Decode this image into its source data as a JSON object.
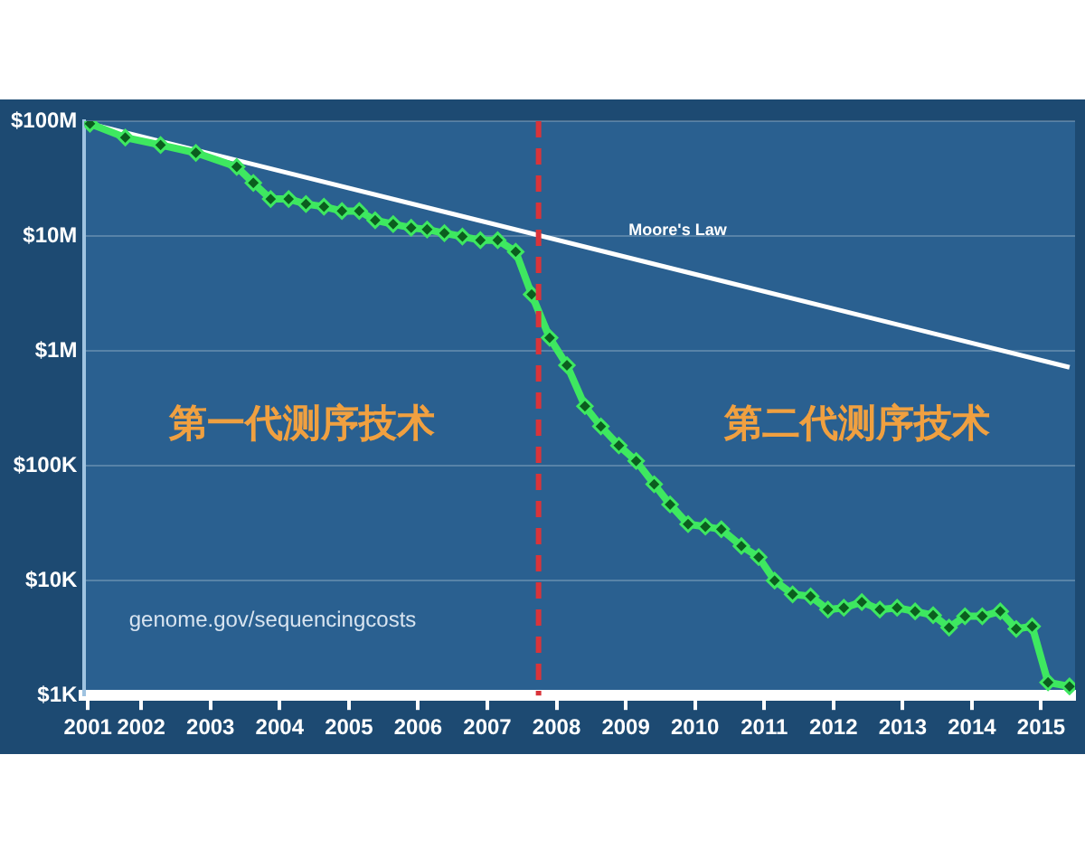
{
  "chart_data": {
    "type": "line",
    "log": "y",
    "grid": "y",
    "legend": false,
    "xlim": [
      2001.18,
      2015.49
    ],
    "xticks": [
      {
        "value": 2001.23,
        "label": "2001"
      },
      {
        "value": 2002,
        "label": "2002"
      },
      {
        "value": 2003,
        "label": "2003"
      },
      {
        "value": 2004,
        "label": "2004"
      },
      {
        "value": 2005,
        "label": "2005"
      },
      {
        "value": 2006,
        "label": "2006"
      },
      {
        "value": 2007,
        "label": "2007"
      },
      {
        "value": 2008,
        "label": "2008"
      },
      {
        "value": 2009,
        "label": "2009"
      },
      {
        "value": 2010,
        "label": "2010"
      },
      {
        "value": 2011,
        "label": "2011"
      },
      {
        "value": 2012,
        "label": "2012"
      },
      {
        "value": 2013,
        "label": "2013"
      },
      {
        "value": 2014,
        "label": "2014"
      },
      {
        "value": 2015,
        "label": "2015"
      }
    ],
    "ylim": [
      1000,
      100000000
    ],
    "yticks": [
      {
        "value": 1000,
        "label": "$1K"
      },
      {
        "value": 10000,
        "label": "$10K"
      },
      {
        "value": 100000,
        "label": "$100K"
      },
      {
        "value": 1000000,
        "label": "$1M"
      },
      {
        "value": 10000000,
        "label": "$10M"
      },
      {
        "value": 100000000,
        "label": "$100M"
      }
    ],
    "series": [
      {
        "color": "#3ee860",
        "marker": "diamond",
        "x": [
          2001.26,
          2001.77,
          2002.28,
          2002.79,
          2003.38,
          2003.62,
          2003.87,
          2004.13,
          2004.38,
          2004.64,
          2004.9,
          2005.15,
          2005.38,
          2005.64,
          2005.9,
          2006.13,
          2006.38,
          2006.64,
          2006.9,
          2007.15,
          2007.41,
          2007.64,
          2007.9,
          2008.15,
          2008.41,
          2008.64,
          2008.9,
          2009.15,
          2009.41,
          2009.64,
          2009.9,
          2010.15,
          2010.38,
          2010.67,
          2010.92,
          2011.15,
          2011.41,
          2011.67,
          2011.92,
          2012.15,
          2012.41,
          2012.67,
          2012.92,
          2013.18,
          2013.44,
          2013.67,
          2013.9,
          2014.15,
          2014.41,
          2014.64,
          2014.87,
          2015.1,
          2015.41
        ],
        "values": [
          95000000,
          72000000,
          62000000,
          53000000,
          40000000,
          29000000,
          21000000,
          21000000,
          19000000,
          18000000,
          16500000,
          16500000,
          13700000,
          12700000,
          11800000,
          11400000,
          10600000,
          9900000,
          9200000,
          9200000,
          7300000,
          3100000,
          1300000,
          750000,
          330000,
          220000,
          150000,
          110000,
          69000,
          46000,
          31000,
          29500,
          28000,
          20000,
          16000,
          10000,
          7600,
          7300,
          5600,
          5800,
          6500,
          5600,
          5800,
          5400,
          5000,
          3900,
          4900,
          4900,
          5400,
          3800,
          4000,
          1300,
          1200
        ]
      },
      {
        "name": "Moore's Law",
        "color": "#ffffff",
        "marker": "none",
        "x": [
          2001.26,
          2015.41
        ],
        "values": [
          95000000,
          720000
        ]
      }
    ],
    "ref_lines": [
      {
        "axis": "x",
        "value": 2007.74,
        "color": "#d9343a",
        "line_style": "dashed"
      }
    ],
    "annotations": [
      "第一代测序技术",
      "第二代测序技术",
      "genome.gov/sequencingcosts"
    ]
  }
}
